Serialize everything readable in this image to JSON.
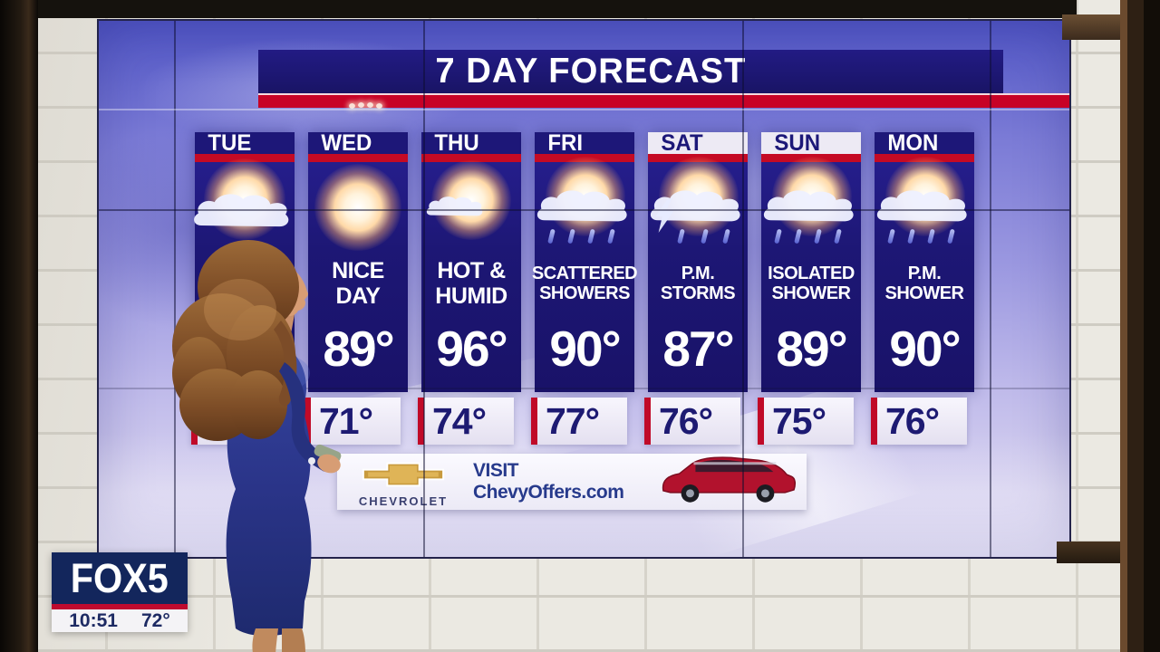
{
  "colors": {
    "navy_panel": "#1d1775",
    "title_navy": "#191465",
    "accent_red": "#c70226",
    "temp_text_navy": "#1d1a72",
    "weekend_header_bg": "#edeaf4",
    "fox_navy": "#13265c",
    "fox_red": "#bf0a2e",
    "chevy_gold": "#c89a3e",
    "suv_red": "#b2122d"
  },
  "forecast_board": {
    "title": "7 DAY FORECAST",
    "days": [
      {
        "day": "TUE",
        "icon": "sun-behind-cloud",
        "condition": "",
        "high": "°",
        "low": "",
        "weekend": false
      },
      {
        "day": "WED",
        "icon": "sunny",
        "condition": "NICE\nDAY",
        "high": "89°",
        "low": "71°",
        "weekend": false
      },
      {
        "day": "THU",
        "icon": "sun-small-cloud",
        "condition": "HOT &\nHUMID",
        "high": "96°",
        "low": "74°",
        "weekend": false
      },
      {
        "day": "FRI",
        "icon": "sun-cloud-rain",
        "condition": "SCATTERED\nSHOWERS",
        "high": "90°",
        "low": "77°",
        "weekend": false
      },
      {
        "day": "SAT",
        "icon": "sun-cloud-lightning-rain",
        "condition": "P.M.\nSTORMS",
        "high": "87°",
        "low": "76°",
        "weekend": true
      },
      {
        "day": "SUN",
        "icon": "sun-cloud-rain",
        "condition": "ISOLATED\nSHOWER",
        "high": "89°",
        "low": "75°",
        "weekend": true
      },
      {
        "day": "MON",
        "icon": "sun-cloud-rain",
        "condition": "P.M.\nSHOWER",
        "high": "90°",
        "low": "76°",
        "weekend": false
      }
    ]
  },
  "ad_banner": {
    "brand": "CHEVROLET",
    "message": "VISIT ChevyOffers.com",
    "vehicle_graphic": "red-suv"
  },
  "station_bug": {
    "logo": "FOX5",
    "time": "10:51",
    "temp": "72°"
  }
}
